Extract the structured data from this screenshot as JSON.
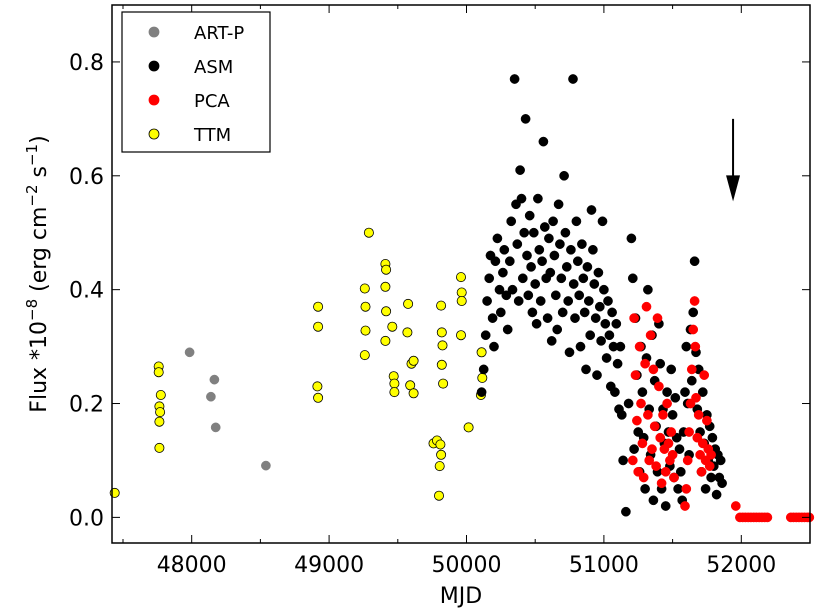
{
  "chart_data": {
    "type": "scatter",
    "title": "",
    "xlabel": "MJD",
    "ylabel": {
      "prefix": "Flux *10",
      "exp": "−8",
      "unit_open": " (erg cm",
      "unit_exp1": "−2",
      "unit_mid": " s",
      "unit_exp2": "−1",
      "unit_close": ")"
    },
    "xlim": [
      47420,
      52500
    ],
    "ylim": [
      -0.045,
      0.9
    ],
    "x_ticks": [
      48000,
      49000,
      50000,
      51000,
      52000
    ],
    "x_tick_labels": [
      "48000",
      "49000",
      "50000",
      "51000",
      "52000"
    ],
    "y_ticks": [
      0.0,
      0.2,
      0.4,
      0.6,
      0.8
    ],
    "y_tick_labels": [
      "0.0",
      "0.2",
      "0.4",
      "0.6",
      "0.8"
    ],
    "grid": false,
    "legend": {
      "position": "top-left",
      "entries": [
        "ART-P",
        "ASM",
        "PCA",
        "TTM"
      ]
    },
    "colors": {
      "ART-P": "#808080",
      "ASM": "#000000",
      "PCA": "#ff0000",
      "TTM": "#ffff00"
    },
    "series": [
      {
        "name": "ART-P",
        "points": [
          [
            47985,
            0.29
          ],
          [
            48140,
            0.212
          ],
          [
            48165,
            0.242
          ],
          [
            48175,
            0.158
          ],
          [
            48540,
            0.091
          ]
        ]
      },
      {
        "name": "TTM",
        "points": [
          [
            47440,
            0.043
          ],
          [
            47760,
            0.265
          ],
          [
            47760,
            0.255
          ],
          [
            47765,
            0.195
          ],
          [
            47770,
            0.185
          ],
          [
            47765,
            0.168
          ],
          [
            47775,
            0.215
          ],
          [
            47765,
            0.122
          ],
          [
            48920,
            0.37
          ],
          [
            48920,
            0.335
          ],
          [
            48915,
            0.23
          ],
          [
            48920,
            0.21
          ],
          [
            49260,
            0.402
          ],
          [
            49265,
            0.37
          ],
          [
            49265,
            0.328
          ],
          [
            49260,
            0.285
          ],
          [
            49290,
            0.5
          ],
          [
            49410,
            0.445
          ],
          [
            49415,
            0.435
          ],
          [
            49410,
            0.405
          ],
          [
            49415,
            0.362
          ],
          [
            49410,
            0.31
          ],
          [
            49460,
            0.335
          ],
          [
            49470,
            0.248
          ],
          [
            49475,
            0.235
          ],
          [
            49475,
            0.22
          ],
          [
            49575,
            0.375
          ],
          [
            49570,
            0.325
          ],
          [
            49600,
            0.27
          ],
          [
            49615,
            0.275
          ],
          [
            49590,
            0.232
          ],
          [
            49615,
            0.218
          ],
          [
            49760,
            0.13
          ],
          [
            49785,
            0.135
          ],
          [
            49810,
            0.128
          ],
          [
            49815,
            0.11
          ],
          [
            49805,
            0.09
          ],
          [
            49800,
            0.038
          ],
          [
            49815,
            0.372
          ],
          [
            49820,
            0.325
          ],
          [
            49825,
            0.302
          ],
          [
            49820,
            0.268
          ],
          [
            49830,
            0.235
          ],
          [
            49960,
            0.422
          ],
          [
            49965,
            0.395
          ],
          [
            49965,
            0.38
          ],
          [
            49960,
            0.32
          ],
          [
            50015,
            0.158
          ],
          [
            50110,
            0.29
          ],
          [
            50115,
            0.245
          ],
          [
            50105,
            0.215
          ]
        ]
      },
      {
        "name": "ASM",
        "points": [
          [
            50110,
            0.22
          ],
          [
            50125,
            0.26
          ],
          [
            50140,
            0.32
          ],
          [
            50150,
            0.38
          ],
          [
            50165,
            0.42
          ],
          [
            50175,
            0.46
          ],
          [
            50190,
            0.35
          ],
          [
            50200,
            0.3
          ],
          [
            50210,
            0.45
          ],
          [
            50225,
            0.49
          ],
          [
            50240,
            0.4
          ],
          [
            50250,
            0.36
          ],
          [
            50265,
            0.43
          ],
          [
            50275,
            0.47
          ],
          [
            50290,
            0.39
          ],
          [
            50300,
            0.33
          ],
          [
            50315,
            0.45
          ],
          [
            50325,
            0.52
          ],
          [
            50335,
            0.4
          ],
          [
            50350,
            0.77
          ],
          [
            50360,
            0.55
          ],
          [
            50370,
            0.48
          ],
          [
            50380,
            0.38
          ],
          [
            50390,
            0.61
          ],
          [
            50400,
            0.56
          ],
          [
            50410,
            0.42
          ],
          [
            50420,
            0.5
          ],
          [
            50430,
            0.7
          ],
          [
            50440,
            0.46
          ],
          [
            50450,
            0.39
          ],
          [
            50460,
            0.53
          ],
          [
            50470,
            0.44
          ],
          [
            50480,
            0.36
          ],
          [
            50490,
            0.5
          ],
          [
            50500,
            0.41
          ],
          [
            50510,
            0.34
          ],
          [
            50520,
            0.56
          ],
          [
            50530,
            0.47
          ],
          [
            50540,
            0.38
          ],
          [
            50550,
            0.45
          ],
          [
            50560,
            0.66
          ],
          [
            50570,
            0.51
          ],
          [
            50580,
            0.42
          ],
          [
            50590,
            0.35
          ],
          [
            50600,
            0.49
          ],
          [
            50610,
            0.43
          ],
          [
            50620,
            0.31
          ],
          [
            50630,
            0.52
          ],
          [
            50640,
            0.46
          ],
          [
            50650,
            0.39
          ],
          [
            50660,
            0.33
          ],
          [
            50670,
            0.55
          ],
          [
            50680,
            0.48
          ],
          [
            50690,
            0.42
          ],
          [
            50700,
            0.36
          ],
          [
            50710,
            0.6
          ],
          [
            50720,
            0.5
          ],
          [
            50730,
            0.44
          ],
          [
            50740,
            0.38
          ],
          [
            50750,
            0.29
          ],
          [
            50760,
            0.47
          ],
          [
            50775,
            0.77
          ],
          [
            50780,
            0.41
          ],
          [
            50790,
            0.35
          ],
          [
            50800,
            0.52
          ],
          [
            50810,
            0.45
          ],
          [
            50820,
            0.39
          ],
          [
            50830,
            0.3
          ],
          [
            50840,
            0.48
          ],
          [
            50850,
            0.42
          ],
          [
            50860,
            0.36
          ],
          [
            50870,
            0.26
          ],
          [
            50880,
            0.44
          ],
          [
            50890,
            0.38
          ],
          [
            50900,
            0.32
          ],
          [
            50910,
            0.54
          ],
          [
            50920,
            0.47
          ],
          [
            50930,
            0.41
          ],
          [
            50940,
            0.35
          ],
          [
            50950,
            0.25
          ],
          [
            50960,
            0.43
          ],
          [
            50970,
            0.37
          ],
          [
            50980,
            0.31
          ],
          [
            50990,
            0.52
          ],
          [
            51000,
            0.4
          ],
          [
            51010,
            0.34
          ],
          [
            51020,
            0.28
          ],
          [
            51030,
            0.38
          ],
          [
            51040,
            0.32
          ],
          [
            51050,
            0.23
          ],
          [
            51060,
            0.36
          ],
          [
            51070,
            0.3
          ],
          [
            51080,
            0.22
          ],
          [
            51090,
            0.34
          ],
          [
            51100,
            0.27
          ],
          [
            51110,
            0.19
          ],
          [
            51120,
            0.3
          ],
          [
            51130,
            0.18
          ],
          [
            51140,
            0.1
          ],
          [
            51160,
            0.01
          ],
          [
            51180,
            0.2
          ],
          [
            51200,
            0.49
          ],
          [
            51210,
            0.42
          ],
          [
            51220,
            0.12
          ],
          [
            51230,
            0.35
          ],
          [
            51240,
            0.25
          ],
          [
            51250,
            0.15
          ],
          [
            51260,
            0.08
          ],
          [
            51270,
            0.3
          ],
          [
            51280,
            0.22
          ],
          [
            51290,
            0.14
          ],
          [
            51300,
            0.05
          ],
          [
            51310,
            0.28
          ],
          [
            51320,
            0.4
          ],
          [
            51330,
            0.19
          ],
          [
            51340,
            0.11
          ],
          [
            51350,
            0.32
          ],
          [
            51360,
            0.03
          ],
          [
            51370,
            0.24
          ],
          [
            51380,
            0.16
          ],
          [
            51390,
            0.08
          ],
          [
            51400,
            0.34
          ],
          [
            51410,
            0.27
          ],
          [
            51420,
            0.05
          ],
          [
            51430,
            0.19
          ],
          [
            51440,
            0.13
          ],
          [
            51450,
            0.02
          ],
          [
            51460,
            0.22
          ],
          [
            51470,
            0.15
          ],
          [
            51480,
            0.09
          ],
          [
            51490,
            0.26
          ],
          [
            51500,
            0.18
          ],
          [
            51510,
            0.07
          ],
          [
            51520,
            0.21
          ],
          [
            51530,
            0.14
          ],
          [
            51540,
            0.05
          ],
          [
            51550,
            0.12
          ],
          [
            51560,
            0.08
          ],
          [
            51570,
            0.03
          ],
          [
            51580,
            0.15
          ],
          [
            51590,
            0.22
          ],
          [
            51600,
            0.3
          ],
          [
            51610,
            0.2
          ],
          [
            51620,
            0.11
          ],
          [
            51630,
            0.33
          ],
          [
            51640,
            0.24
          ],
          [
            51650,
            0.36
          ],
          [
            51660,
            0.45
          ],
          [
            51670,
            0.29
          ],
          [
            51680,
            0.19
          ],
          [
            51690,
            0.26
          ],
          [
            51700,
            0.15
          ],
          [
            51710,
            0.08
          ],
          [
            51720,
            0.22
          ],
          [
            51730,
            0.13
          ],
          [
            51740,
            0.05
          ],
          [
            51750,
            0.18
          ],
          [
            51760,
            0.1
          ],
          [
            51770,
            0.16
          ],
          [
            51780,
            0.07
          ],
          [
            51790,
            0.14
          ],
          [
            51800,
            0.09
          ],
          [
            51810,
            0.12
          ],
          [
            51820,
            0.04
          ],
          [
            51830,
            0.11
          ],
          [
            51840,
            0.07
          ],
          [
            51850,
            0.1
          ],
          [
            51860,
            0.06
          ]
        ]
      },
      {
        "name": "PCA",
        "points": [
          [
            51210,
            0.1
          ],
          [
            51220,
            0.35
          ],
          [
            51230,
            0.25
          ],
          [
            51240,
            0.17
          ],
          [
            51250,
            0.08
          ],
          [
            51260,
            0.3
          ],
          [
            51270,
            0.2
          ],
          [
            51280,
            0.13
          ],
          [
            51290,
            0.07
          ],
          [
            51300,
            0.27
          ],
          [
            51310,
            0.37
          ],
          [
            51320,
            0.18
          ],
          [
            51330,
            0.1
          ],
          [
            51340,
            0.32
          ],
          [
            51350,
            0.12
          ],
          [
            51360,
            0.26
          ],
          [
            51370,
            0.16
          ],
          [
            51380,
            0.09
          ],
          [
            51390,
            0.35
          ],
          [
            51400,
            0.23
          ],
          [
            51410,
            0.14
          ],
          [
            51420,
            0.06
          ],
          [
            51430,
            0.18
          ],
          [
            51440,
            0.12
          ],
          [
            51450,
            0.08
          ],
          [
            51460,
            0.2
          ],
          [
            51470,
            0.13
          ],
          [
            51480,
            0.1
          ],
          [
            51490,
            0.15
          ],
          [
            51500,
            0.11
          ],
          [
            51510,
            0.07
          ],
          [
            51590,
            0.02
          ],
          [
            51600,
            0.05
          ],
          [
            51610,
            0.1
          ],
          [
            51620,
            0.15
          ],
          [
            51630,
            0.2
          ],
          [
            51640,
            0.26
          ],
          [
            51650,
            0.33
          ],
          [
            51660,
            0.38
          ],
          [
            51665,
            0.3
          ],
          [
            51670,
            0.21
          ],
          [
            51680,
            0.14
          ],
          [
            51690,
            0.18
          ],
          [
            51700,
            0.11
          ],
          [
            51710,
            0.08
          ],
          [
            51720,
            0.13
          ],
          [
            51730,
            0.25
          ],
          [
            51740,
            0.1
          ],
          [
            51750,
            0.17
          ],
          [
            51760,
            0.12
          ],
          [
            51770,
            0.09
          ],
          [
            51780,
            0.11
          ],
          [
            51960,
            0.02
          ],
          [
            51990,
            0.0
          ],
          [
            52010,
            0.0
          ],
          [
            52030,
            0.0
          ],
          [
            52050,
            0.0
          ],
          [
            52070,
            0.0
          ],
          [
            52090,
            0.0
          ],
          [
            52110,
            0.0
          ],
          [
            52130,
            0.0
          ],
          [
            52150,
            0.0
          ],
          [
            52170,
            0.0
          ],
          [
            52190,
            0.0
          ],
          [
            52360,
            0.0
          ],
          [
            52380,
            0.0
          ],
          [
            52400,
            0.0
          ],
          [
            52420,
            0.0
          ],
          [
            52440,
            0.0
          ],
          [
            52460,
            0.0
          ],
          [
            52480,
            0.0
          ],
          [
            52495,
            0.0
          ]
        ]
      }
    ],
    "annotations": [
      {
        "type": "arrow",
        "x": 51940,
        "y_from": 0.7,
        "y_to": 0.555,
        "direction": "down"
      }
    ]
  }
}
